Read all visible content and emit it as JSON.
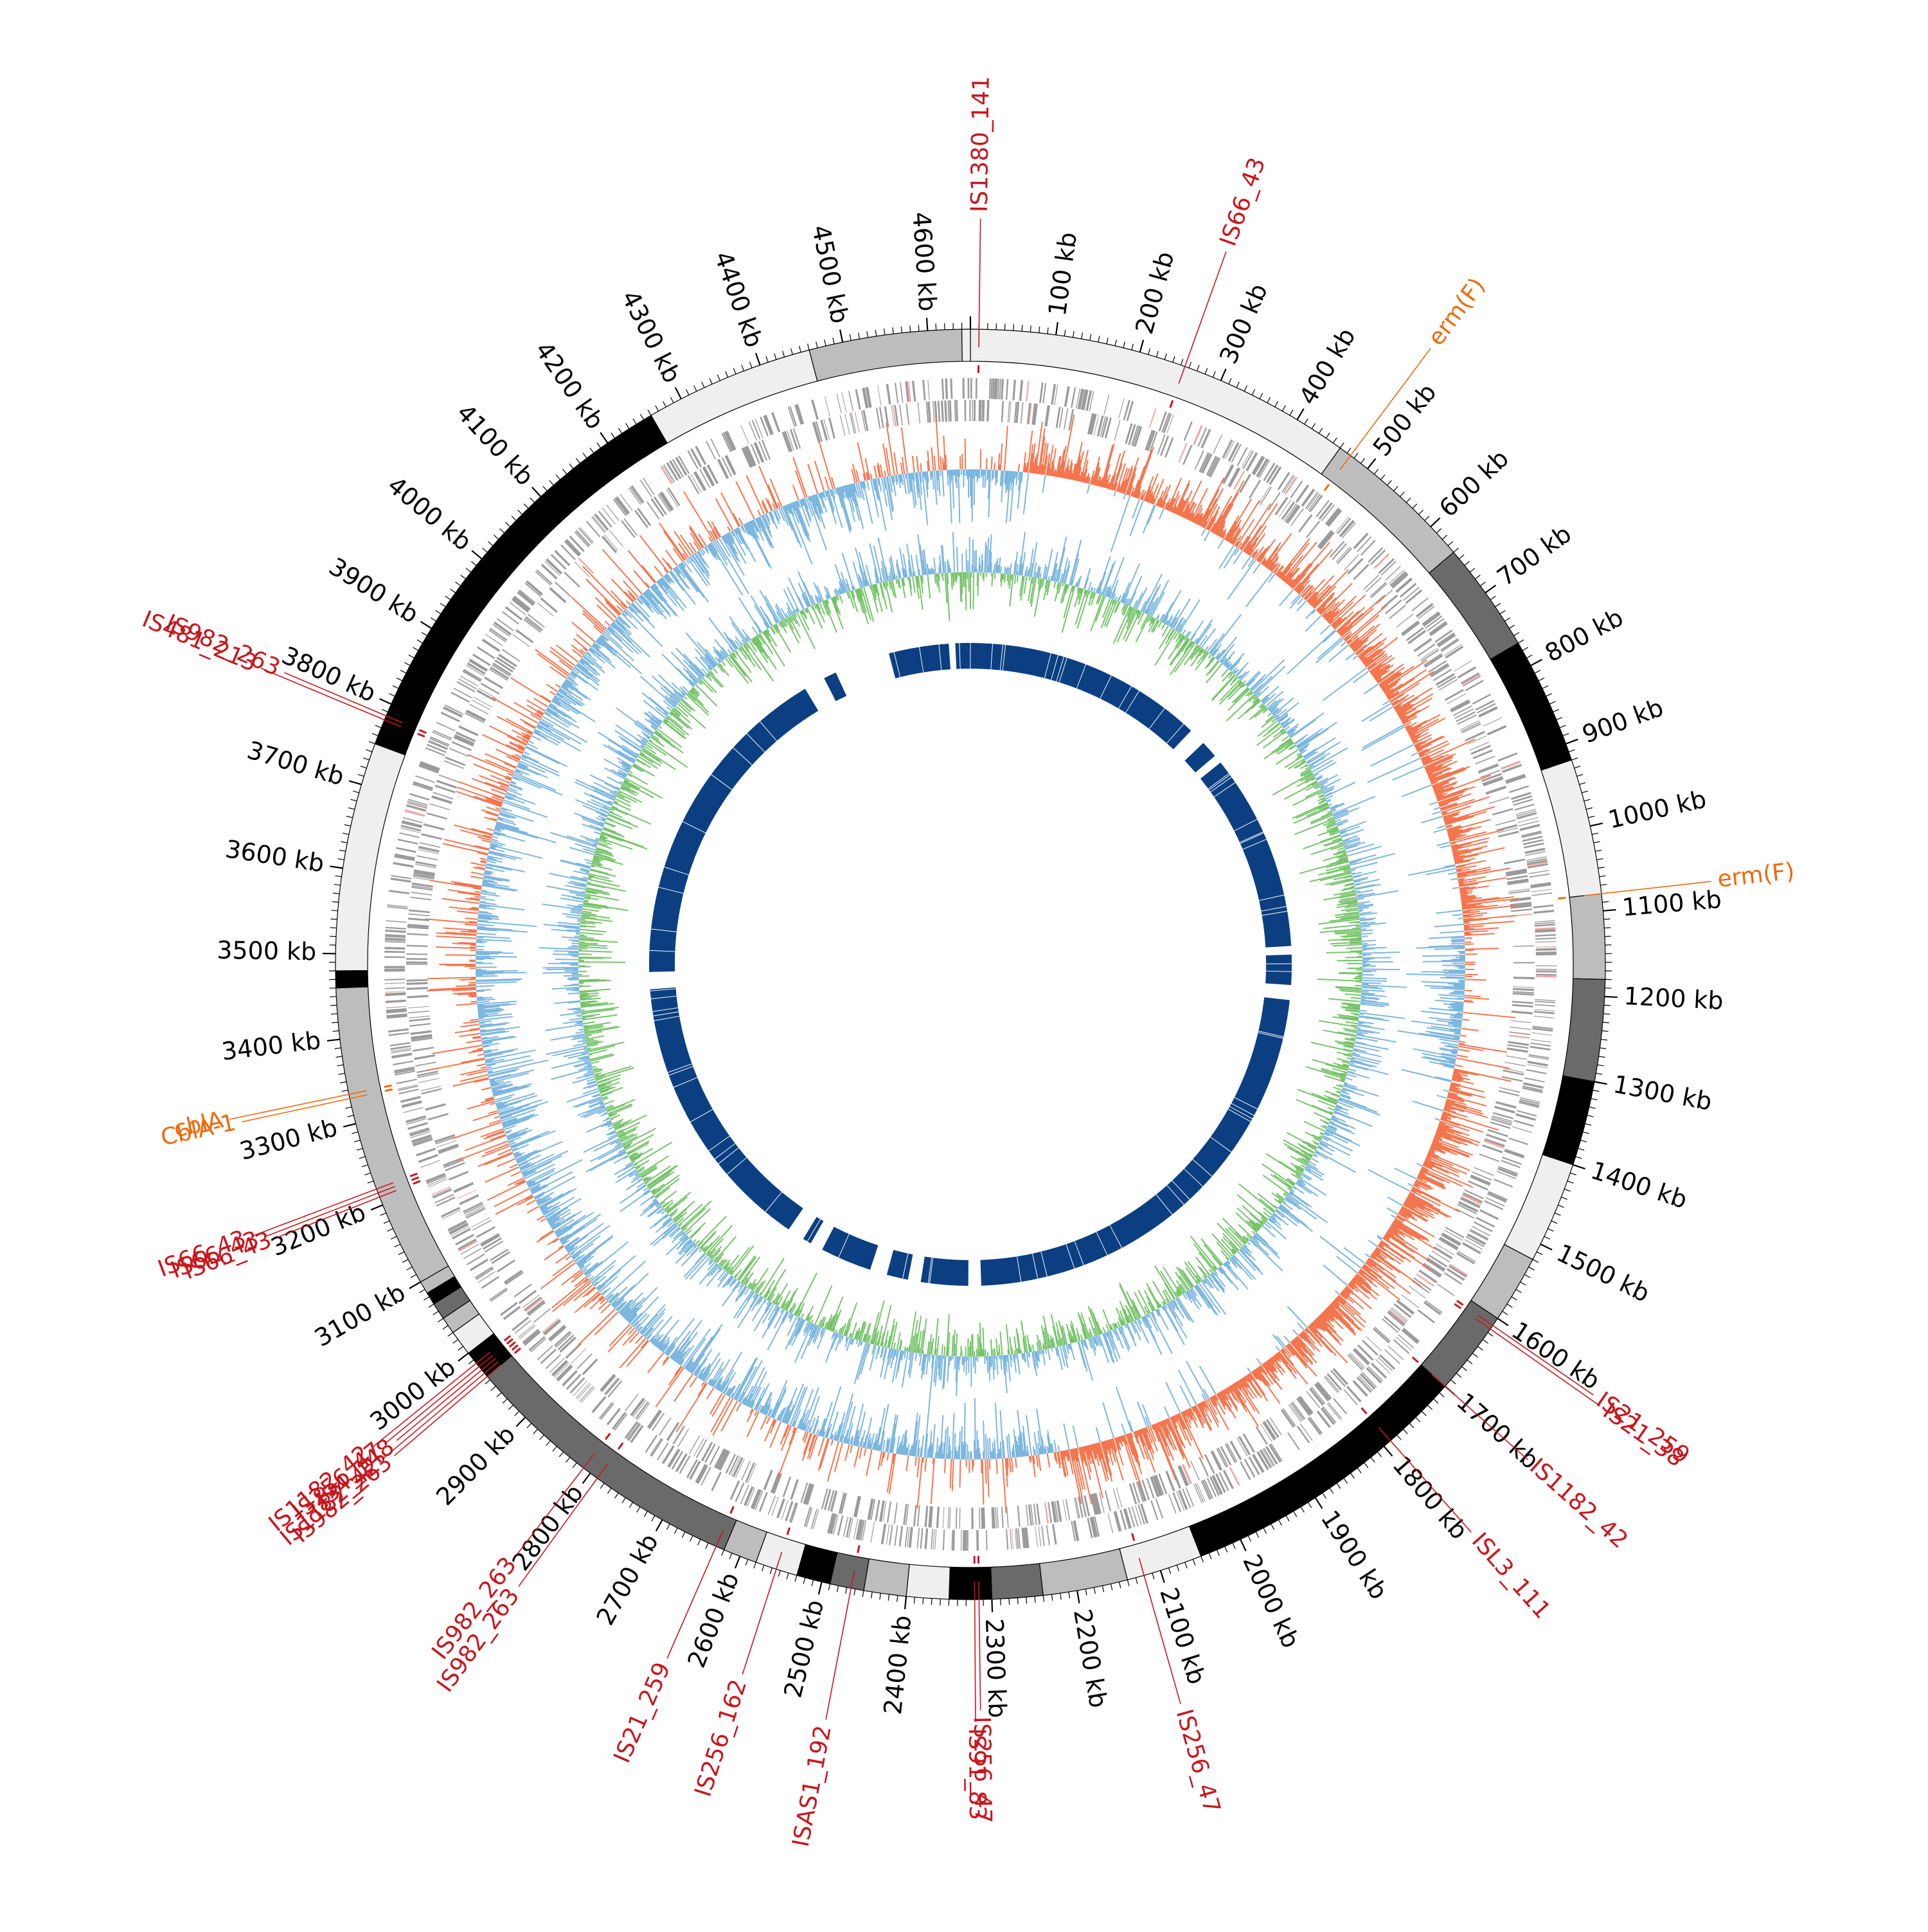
{
  "genome": {
    "length_kb": 4650,
    "unit": "kb",
    "tick_labels_kb": [
      100,
      200,
      300,
      400,
      500,
      600,
      700,
      800,
      900,
      1000,
      1100,
      1200,
      1300,
      1400,
      1500,
      1600,
      1700,
      1800,
      1900,
      2000,
      2100,
      2200,
      2300,
      2400,
      2500,
      2600,
      2700,
      2800,
      2900,
      3000,
      3100,
      3200,
      3300,
      3400,
      3500,
      3600,
      3700,
      3800,
      3900,
      4000,
      4100,
      4200,
      4300,
      4400,
      4500,
      4600
    ]
  },
  "contig_blocks": [
    {
      "start": 0,
      "end": 460,
      "shade": "#efefef"
    },
    {
      "start": 460,
      "end": 640,
      "shade": "#bdbdbd"
    },
    {
      "start": 640,
      "end": 770,
      "shade": "#6a6a6a"
    },
    {
      "start": 770,
      "end": 920,
      "shade": "#000000"
    },
    {
      "start": 920,
      "end": 1080,
      "shade": "#efefef"
    },
    {
      "start": 1080,
      "end": 1180,
      "shade": "#bdbdbd"
    },
    {
      "start": 1180,
      "end": 1300,
      "shade": "#6a6a6a"
    },
    {
      "start": 1300,
      "end": 1400,
      "shade": "#000000"
    },
    {
      "start": 1400,
      "end": 1520,
      "shade": "#efefef"
    },
    {
      "start": 1520,
      "end": 1600,
      "shade": "#bdbdbd"
    },
    {
      "start": 1600,
      "end": 1700,
      "shade": "#6a6a6a"
    },
    {
      "start": 1700,
      "end": 2050,
      "shade": "#000000"
    },
    {
      "start": 2050,
      "end": 2140,
      "shade": "#efefef"
    },
    {
      "start": 2140,
      "end": 2240,
      "shade": "#bdbdbd"
    },
    {
      "start": 2240,
      "end": 2300,
      "shade": "#6a6a6a"
    },
    {
      "start": 2300,
      "end": 2350,
      "shade": "#000000"
    },
    {
      "start": 2350,
      "end": 2400,
      "shade": "#efefef"
    },
    {
      "start": 2400,
      "end": 2450,
      "shade": "#bdbdbd"
    },
    {
      "start": 2450,
      "end": 2490,
      "shade": "#6a6a6a"
    },
    {
      "start": 2490,
      "end": 2530,
      "shade": "#000000"
    },
    {
      "start": 2530,
      "end": 2580,
      "shade": "#efefef"
    },
    {
      "start": 2580,
      "end": 2620,
      "shade": "#bdbdbd"
    },
    {
      "start": 2620,
      "end": 2965,
      "shade": "#6a6a6a"
    },
    {
      "start": 2965,
      "end": 3000,
      "shade": "#000000"
    },
    {
      "start": 3000,
      "end": 3030,
      "shade": "#efefef"
    },
    {
      "start": 3030,
      "end": 3050,
      "shade": "#bdbdbd"
    },
    {
      "start": 3050,
      "end": 3070,
      "shade": "#6a6a6a"
    },
    {
      "start": 3070,
      "end": 3085,
      "shade": "#000000"
    },
    {
      "start": 3085,
      "end": 3100,
      "shade": "#bdbdbd"
    },
    {
      "start": 3100,
      "end": 3460,
      "shade": "#bdbdbd"
    },
    {
      "start": 3460,
      "end": 3480,
      "shade": "#000000"
    },
    {
      "start": 3480,
      "end": 3750,
      "shade": "#efefef"
    },
    {
      "start": 3750,
      "end": 4260,
      "shade": "#000000"
    },
    {
      "start": 4260,
      "end": 4460,
      "shade": "#efefef"
    },
    {
      "start": 4460,
      "end": 4640,
      "shade": "#bdbdbd"
    },
    {
      "start": 4640,
      "end": 4650,
      "shade": "#efefef"
    }
  ],
  "annotations": [
    {
      "label": "IS1380_141",
      "pos": 10,
      "color": "#c8161d"
    },
    {
      "label": "IS66_43",
      "pos": 255,
      "color": "#c8161d"
    },
    {
      "label": "erm(F)",
      "pos": 475,
      "color": "#ee6a0a"
    },
    {
      "label": "erm(F)",
      "pos": 1080,
      "color": "#ee6a0a"
    },
    {
      "label": "IS21_259",
      "pos": 1610,
      "color": "#c8161d"
    },
    {
      "label": "IS21_38",
      "pos": 1615,
      "color": "#c8161d"
    },
    {
      "label": "IS1182_42",
      "pos": 1700,
      "color": "#c8161d"
    },
    {
      "label": "ISL3_111",
      "pos": 1790,
      "color": "#c8161d"
    },
    {
      "label": "IS256_47",
      "pos": 2120,
      "color": "#c8161d"
    },
    {
      "label": "IS256_47",
      "pos": 2315,
      "color": "#c8161d"
    },
    {
      "label": "IS91_83",
      "pos": 2320,
      "color": "#c8161d"
    },
    {
      "label": "ISAS1_192",
      "pos": 2465,
      "color": "#c8161d"
    },
    {
      "label": "IS256_162",
      "pos": 2555,
      "color": "#c8161d"
    },
    {
      "label": "IS21_259",
      "pos": 2630,
      "color": "#c8161d"
    },
    {
      "label": "IS982_263",
      "pos": 2790,
      "color": "#c8161d"
    },
    {
      "label": "IS982_263",
      "pos": 2810,
      "color": "#c8161d"
    },
    {
      "label": "IS982_263",
      "pos": 2965,
      "color": "#c8161d"
    },
    {
      "label": "IS1182_42",
      "pos": 2970,
      "color": "#c8161d"
    },
    {
      "label": "IS4_148",
      "pos": 2975,
      "color": "#c8161d"
    },
    {
      "label": "IS256_47",
      "pos": 2980,
      "color": "#c8161d"
    },
    {
      "label": "IS1182_42",
      "pos": 2985,
      "color": "#c8161d"
    },
    {
      "label": "IS66_43",
      "pos": 3210,
      "color": "#c8161d"
    },
    {
      "label": "IS66_43",
      "pos": 3215,
      "color": "#c8161d"
    },
    {
      "label": "IS66_43",
      "pos": 3220,
      "color": "#c8161d"
    },
    {
      "label": "CblA-1",
      "pos": 3330,
      "color": "#ee6a0a"
    },
    {
      "label": "cblA",
      "pos": 3335,
      "color": "#ee6a0a"
    },
    {
      "label": "IS481_213",
      "pos": 3780,
      "color": "#c8161d"
    },
    {
      "label": "IS982_263",
      "pos": 3785,
      "color": "#c8161d"
    }
  ],
  "tracks": {
    "gc_skew_colors": {
      "positive": "#f4764f",
      "negative": "#7db7df"
    },
    "gc_content_colors": {
      "positive": "#77c46b",
      "negative": "#7db7df"
    },
    "cds_color": "#9b9b9b",
    "homology_color": "#0b3f82",
    "homology_gaps": [
      [
        560,
        600
      ],
      [
        640,
        660
      ],
      [
        1120,
        1140
      ],
      [
        1210,
        1245
      ],
      [
        2300,
        2330
      ],
      [
        2440,
        2470
      ],
      [
        2520,
        2560
      ],
      [
        2680,
        2710
      ],
      [
        2730,
        2770
      ],
      [
        3430,
        3470
      ],
      [
        4250,
        4300
      ],
      [
        4330,
        4460
      ],
      [
        4600,
        4615
      ]
    ]
  }
}
